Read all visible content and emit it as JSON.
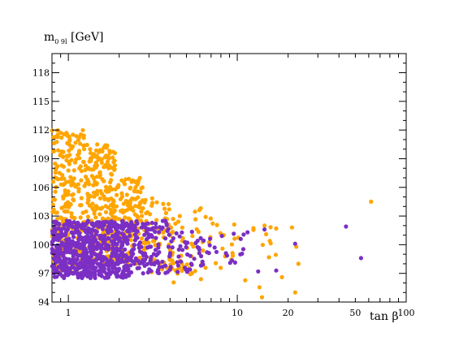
{
  "chart_data": {
    "type": "scatter",
    "title": "",
    "xlabel": "tan  β",
    "ylabel": "m_{h^0} [GeV]",
    "ylabel_main": "m",
    "ylabel_sub": "0 9l",
    "ylabel_unit": "[GeV]",
    "x_scale": "log",
    "xlim": [
      0.8,
      100
    ],
    "ylim": [
      94,
      120
    ],
    "x_ticks": [
      1,
      10,
      20,
      50,
      100
    ],
    "x_tick_labels": [
      "1",
      "10",
      "20",
      "50",
      "100"
    ],
    "y_ticks": [
      94,
      97,
      100,
      103,
      106,
      109,
      112,
      115,
      118
    ],
    "y_tick_labels": [
      "94",
      "97",
      "100",
      "103",
      "106",
      "109",
      "112",
      "115",
      "118"
    ],
    "grid": false,
    "legend": "none",
    "series": [
      {
        "color": "#FFA500",
        "regions": [
          {
            "x": [
              0.8,
              1.3
            ],
            "y": [
              97,
              112
            ],
            "n": 260
          },
          {
            "x": [
              1.3,
              1.9
            ],
            "y": [
              98,
              110.5
            ],
            "n": 230
          },
          {
            "x": [
              1.9,
              2.8
            ],
            "y": [
              98,
              107
            ],
            "n": 140
          },
          {
            "x": [
              2.8,
              4.2
            ],
            "y": [
              97,
              105
            ],
            "n": 70
          },
          {
            "x": [
              4.2,
              6.5
            ],
            "y": [
              96,
              104
            ],
            "n": 40
          },
          {
            "x": [
              6.5,
              11
            ],
            "y": [
              97,
              103
            ],
            "n": 18
          },
          {
            "x": [
              11,
              25
            ],
            "y": [
              95.5,
              102
            ],
            "n": 14
          }
        ],
        "points": [
          [
            62,
            104.5
          ],
          [
            14,
            94.5
          ],
          [
            22,
            95
          ],
          [
            14.5,
            102
          ],
          [
            17,
            101.7
          ],
          [
            23,
            98
          ]
        ]
      },
      {
        "color": "#7B2FC4",
        "regions": [
          {
            "x": [
              0.8,
              1.4
            ],
            "y": [
              96.5,
              102.5
            ],
            "n": 360
          },
          {
            "x": [
              1.4,
              2.3
            ],
            "y": [
              96.5,
              102.5
            ],
            "n": 300
          },
          {
            "x": [
              2.3,
              4.0
            ],
            "y": [
              97,
              102.5
            ],
            "n": 130
          },
          {
            "x": [
              4.0,
              6.5
            ],
            "y": [
              97,
              101.5
            ],
            "n": 45
          },
          {
            "x": [
              6.5,
              11
            ],
            "y": [
              98,
              101.5
            ],
            "n": 18
          }
        ],
        "points": [
          [
            44,
            101.9
          ],
          [
            54,
            98.6
          ],
          [
            17,
            97.3
          ],
          [
            13.3,
            97.2
          ],
          [
            14.5,
            101.6
          ],
          [
            22,
            100.1
          ],
          [
            11.5,
            101.3
          ]
        ]
      }
    ]
  }
}
